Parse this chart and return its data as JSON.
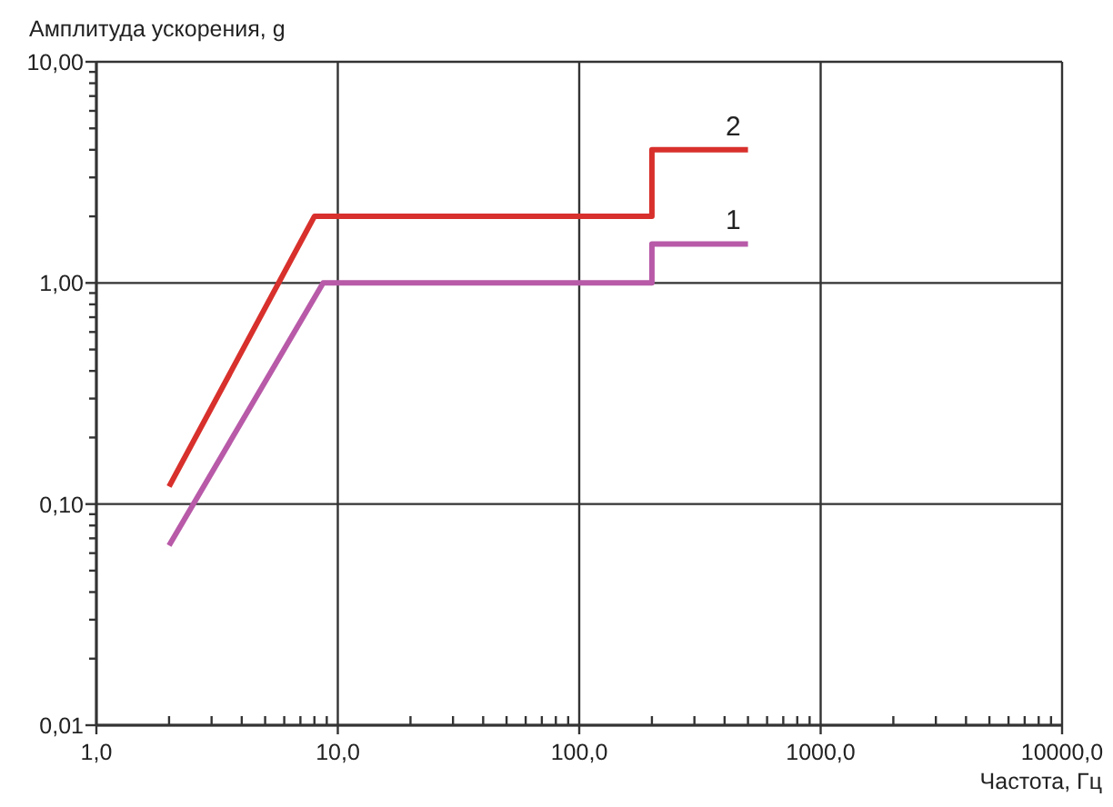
{
  "chart_data": {
    "type": "line",
    "xlabel": "Частота, Гц",
    "ylabel": "Амплитуда ускорения, g",
    "log": "xy",
    "grid": true,
    "line_style": "solid",
    "xlim": [
      1,
      10000
    ],
    "xticks": [
      {
        "value": 1,
        "label": "1,0"
      },
      {
        "value": 2,
        "label": null
      },
      {
        "value": 3,
        "label": null
      },
      {
        "value": 4,
        "label": null
      },
      {
        "value": 5,
        "label": null
      },
      {
        "value": 6,
        "label": null
      },
      {
        "value": 7,
        "label": null
      },
      {
        "value": 8,
        "label": null
      },
      {
        "value": 9,
        "label": null
      },
      {
        "value": 10,
        "label": "10,0"
      },
      {
        "value": 20,
        "label": null
      },
      {
        "value": 30,
        "label": null
      },
      {
        "value": 40,
        "label": null
      },
      {
        "value": 50,
        "label": null
      },
      {
        "value": 60,
        "label": null
      },
      {
        "value": 70,
        "label": null
      },
      {
        "value": 80,
        "label": null
      },
      {
        "value": 90,
        "label": null
      },
      {
        "value": 100,
        "label": "100,0"
      },
      {
        "value": 200,
        "label": null
      },
      {
        "value": 300,
        "label": null
      },
      {
        "value": 400,
        "label": null
      },
      {
        "value": 500,
        "label": null
      },
      {
        "value": 600,
        "label": null
      },
      {
        "value": 700,
        "label": null
      },
      {
        "value": 800,
        "label": null
      },
      {
        "value": 900,
        "label": null
      },
      {
        "value": 1000,
        "label": "1000,0"
      },
      {
        "value": 2000,
        "label": null
      },
      {
        "value": 3000,
        "label": null
      },
      {
        "value": 4000,
        "label": null
      },
      {
        "value": 5000,
        "label": null
      },
      {
        "value": 6000,
        "label": null
      },
      {
        "value": 7000,
        "label": null
      },
      {
        "value": 8000,
        "label": null
      },
      {
        "value": 9000,
        "label": null
      },
      {
        "value": 10000,
        "label": "10000,0"
      }
    ],
    "ylim": [
      0.01,
      10
    ],
    "yticks": [
      {
        "value": 0.01,
        "label": "0,01"
      },
      {
        "value": 0.02,
        "label": null
      },
      {
        "value": 0.03,
        "label": null
      },
      {
        "value": 0.04,
        "label": null
      },
      {
        "value": 0.05,
        "label": null
      },
      {
        "value": 0.06,
        "label": null
      },
      {
        "value": 0.07,
        "label": null
      },
      {
        "value": 0.08,
        "label": null
      },
      {
        "value": 0.09,
        "label": null
      },
      {
        "value": 0.1,
        "label": "0,10"
      },
      {
        "value": 0.2,
        "label": null
      },
      {
        "value": 0.3,
        "label": null
      },
      {
        "value": 0.4,
        "label": null
      },
      {
        "value": 0.5,
        "label": null
      },
      {
        "value": 0.6,
        "label": null
      },
      {
        "value": 0.7,
        "label": null
      },
      {
        "value": 0.8,
        "label": null
      },
      {
        "value": 0.9,
        "label": null
      },
      {
        "value": 1,
        "label": "1,00"
      },
      {
        "value": 2,
        "label": null
      },
      {
        "value": 3,
        "label": null
      },
      {
        "value": 4,
        "label": null
      },
      {
        "value": 5,
        "label": null
      },
      {
        "value": 6,
        "label": null
      },
      {
        "value": 7,
        "label": null
      },
      {
        "value": 8,
        "label": null
      },
      {
        "value": 9,
        "label": null
      },
      {
        "value": 10,
        "label": "10,00"
      }
    ],
    "series": [
      {
        "name": "1",
        "color": "#b85aa8",
        "x": [
          2,
          8.7,
          200,
          200,
          500
        ],
        "values": [
          0.065,
          1,
          1,
          1.5,
          1.5
        ]
      },
      {
        "name": "2",
        "color": "#d8302c",
        "x": [
          2,
          8,
          200,
          200,
          500
        ],
        "values": [
          0.12,
          2,
          2,
          4,
          4
        ]
      }
    ]
  }
}
